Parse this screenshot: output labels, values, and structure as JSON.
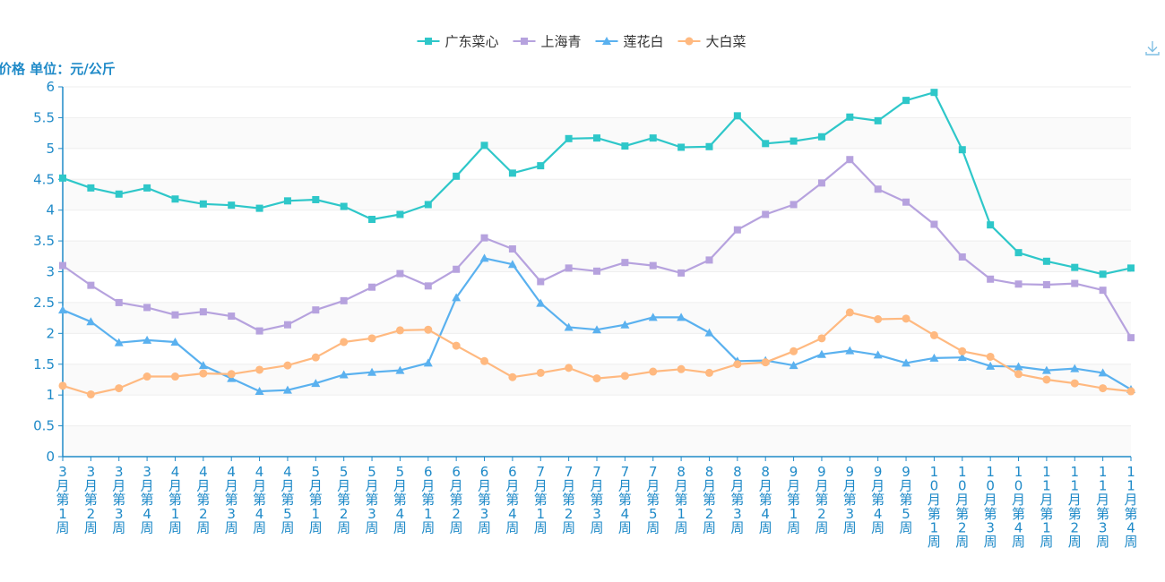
{
  "chart_data": {
    "type": "line",
    "ylabel": "价格 单位：元/公斤",
    "ylim": [
      0,
      6
    ],
    "yticks": [
      "0",
      "0.5",
      "1",
      "1.5",
      "2",
      "2.5",
      "3",
      "3.5",
      "4",
      "4.5",
      "5",
      "5.5",
      "6"
    ],
    "grid": "horizontal bands",
    "legend_position": "top-center",
    "categories": [
      "3月第1周",
      "3月第2周",
      "3月第3周",
      "3月第4周",
      "4月第1周",
      "4月第2周",
      "4月第3周",
      "4月第4周",
      "4月第5周",
      "5月第1周",
      "5月第2周",
      "5月第3周",
      "5月第4周",
      "6月第1周",
      "6月第2周",
      "6月第3周",
      "6月第4周",
      "7月第1周",
      "7月第2周",
      "7月第3周",
      "7月第4周",
      "7月第5周",
      "8月第1周",
      "8月第2周",
      "8月第3周",
      "8月第4周",
      "9月第1周",
      "9月第2周",
      "9月第3周",
      "9月第4周",
      "9月第5周",
      "10月第1周",
      "10月第2周",
      "10月第3周",
      "10月第4周",
      "11月第1周",
      "11月第2周",
      "11月第3周",
      "11月第4周"
    ],
    "series": [
      {
        "name": "广东菜心",
        "color": "#2ec7c9",
        "marker": "square",
        "values": [
          4.52,
          4.36,
          4.26,
          4.36,
          4.18,
          4.1,
          4.08,
          4.03,
          4.15,
          4.17,
          4.06,
          3.85,
          3.93,
          4.09,
          4.55,
          5.05,
          4.6,
          4.72,
          5.16,
          5.17,
          5.04,
          5.17,
          5.02,
          5.03,
          5.53,
          5.08,
          5.12,
          5.19,
          5.51,
          5.45,
          5.78,
          5.91,
          4.98,
          3.76,
          3.31,
          3.17,
          3.07,
          2.96,
          3.06
        ]
      },
      {
        "name": "上海青",
        "color": "#b6a2de",
        "marker": "square",
        "values": [
          3.1,
          2.78,
          2.5,
          2.42,
          2.3,
          2.35,
          2.28,
          2.04,
          2.14,
          2.38,
          2.53,
          2.75,
          2.97,
          2.77,
          3.04,
          3.55,
          3.37,
          2.84,
          3.06,
          3.01,
          3.15,
          3.1,
          2.98,
          3.19,
          3.68,
          3.93,
          4.09,
          4.44,
          4.82,
          4.34,
          4.13,
          3.77,
          3.24,
          2.88,
          2.8,
          2.79,
          2.81,
          2.7,
          1.93
        ]
      },
      {
        "name": "莲花白",
        "color": "#5ab1ef",
        "marker": "triangle",
        "values": [
          2.38,
          2.19,
          1.85,
          1.89,
          1.86,
          1.48,
          1.27,
          1.06,
          1.08,
          1.19,
          1.33,
          1.37,
          1.4,
          1.52,
          2.58,
          3.22,
          3.12,
          2.49,
          2.1,
          2.06,
          2.14,
          2.26,
          2.26,
          2.01,
          1.55,
          1.56,
          1.48,
          1.66,
          1.72,
          1.65,
          1.52,
          1.6,
          1.61,
          1.47,
          1.46,
          1.4,
          1.43,
          1.36,
          1.09
        ]
      },
      {
        "name": "大白菜",
        "color": "#ffb980",
        "marker": "circle",
        "values": [
          1.15,
          1.01,
          1.11,
          1.3,
          1.3,
          1.35,
          1.34,
          1.41,
          1.48,
          1.61,
          1.86,
          1.92,
          2.05,
          2.06,
          1.8,
          1.55,
          1.29,
          1.36,
          1.44,
          1.27,
          1.31,
          1.38,
          1.42,
          1.36,
          1.5,
          1.53,
          1.71,
          1.92,
          2.34,
          2.23,
          2.24,
          1.97,
          1.71,
          1.62,
          1.34,
          1.25,
          1.19,
          1.11,
          1.06
        ]
      }
    ]
  },
  "toolbox": {
    "download_icon": "download-icon"
  }
}
